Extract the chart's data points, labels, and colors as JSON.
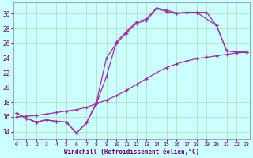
{
  "color": "#993399",
  "bg_color": "#ccffff",
  "grid_color": "#aaccaa",
  "xlabel": "Windchill (Refroidissement éolien,°C)",
  "ylim": [
    13.0,
    31.5
  ],
  "xlim": [
    -0.3,
    23.3
  ],
  "yticks": [
    14,
    16,
    18,
    20,
    22,
    24,
    26,
    28,
    30
  ],
  "xticks": [
    0,
    1,
    2,
    3,
    4,
    5,
    6,
    7,
    8,
    9,
    10,
    11,
    12,
    13,
    14,
    15,
    16,
    17,
    18,
    19,
    20,
    21,
    22,
    23
  ],
  "series": [
    {
      "x": [
        0,
        1,
        2,
        3,
        4,
        5,
        6,
        7,
        8,
        9,
        10,
        11,
        12,
        13,
        14,
        15,
        16,
        17,
        18,
        20,
        21,
        22,
        23
      ],
      "y": [
        16.5,
        15.8,
        15.3,
        15.6,
        15.4,
        15.3,
        13.8,
        15.2,
        17.8,
        21.5,
        26.2,
        27.6,
        28.9,
        29.3,
        30.8,
        30.5,
        30.1,
        30.2,
        30.2,
        28.4,
        25.0,
        24.8,
        24.8
      ],
      "marker": true
    },
    {
      "x": [
        0,
        1,
        2,
        3,
        4,
        5,
        6,
        7,
        8,
        9,
        10,
        11,
        12,
        13,
        14,
        15,
        16,
        17,
        18,
        19,
        20,
        21,
        22,
        23
      ],
      "y": [
        16.5,
        15.8,
        15.3,
        15.6,
        15.4,
        15.3,
        13.8,
        15.2,
        18.0,
        24.0,
        26.0,
        27.4,
        28.7,
        29.1,
        30.7,
        30.3,
        30.0,
        30.2,
        30.2,
        30.2,
        28.4,
        25.0,
        24.8,
        24.8
      ],
      "marker": true
    },
    {
      "x": [
        0,
        1,
        2,
        3,
        4,
        5,
        6,
        7,
        8,
        9,
        10,
        11,
        12,
        13,
        14,
        15,
        16,
        17,
        18,
        19,
        20,
        21,
        22,
        23
      ],
      "y": [
        16.0,
        16.1,
        16.2,
        16.4,
        16.6,
        16.8,
        17.0,
        17.3,
        17.8,
        18.3,
        18.9,
        19.6,
        20.4,
        21.2,
        22.0,
        22.7,
        23.2,
        23.6,
        23.9,
        24.1,
        24.3,
        24.5,
        24.7,
        24.8
      ],
      "marker": true
    }
  ]
}
